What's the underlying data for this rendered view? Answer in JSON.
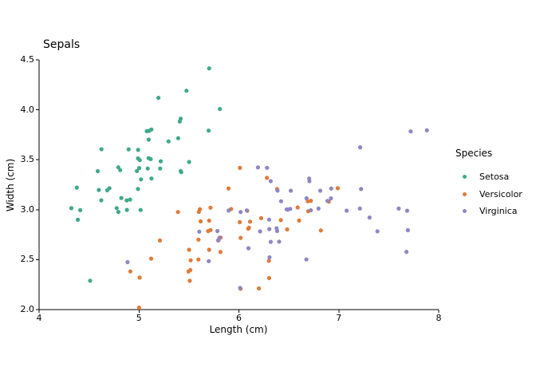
{
  "chart_data": {
    "type": "scatter",
    "title": "Sepals",
    "xlabel": "Length (cm)",
    "ylabel": "Width (cm)",
    "xlim": [
      4,
      8
    ],
    "ylim": [
      2.0,
      4.5
    ],
    "x_ticks": [
      4,
      5,
      6,
      7,
      8
    ],
    "x_tick_labels": [
      "4",
      "5",
      "6",
      "7",
      "8"
    ],
    "y_ticks": [
      2.0,
      2.5,
      3.0,
      3.5,
      4.0,
      4.5
    ],
    "y_tick_labels": [
      "2.0",
      "2.5",
      "3.0",
      "3.5",
      "4.0",
      "4.5"
    ],
    "grid": false,
    "legend_title": "Species",
    "legend_position": "right",
    "marker": "circle",
    "axis_color": "#000000",
    "series": [
      {
        "name": "Setosa",
        "color": "#3fa98b",
        "x": [
          5.1,
          4.9,
          4.7,
          4.6,
          5.0,
          5.4,
          4.6,
          5.0,
          4.4,
          4.9,
          5.4,
          4.8,
          4.8,
          4.3,
          5.8,
          5.7,
          5.4,
          5.1,
          5.7,
          5.1,
          5.4,
          5.1,
          4.6,
          5.1,
          4.8,
          5.0,
          5.0,
          5.2,
          5.2,
          4.7,
          4.8,
          5.4,
          5.2,
          5.5,
          4.9,
          5.0,
          5.5,
          4.9,
          4.4,
          5.1,
          5.0,
          4.5,
          4.4,
          5.0,
          5.1,
          4.8,
          5.1,
          4.6,
          5.3,
          5.0
        ],
        "y": [
          3.5,
          3.0,
          3.2,
          3.1,
          3.6,
          3.9,
          3.4,
          3.4,
          2.9,
          3.1,
          3.7,
          3.4,
          3.0,
          3.0,
          4.0,
          4.4,
          3.9,
          3.5,
          3.8,
          3.8,
          3.4,
          3.7,
          3.6,
          3.3,
          3.4,
          3.0,
          3.4,
          3.5,
          3.4,
          3.2,
          3.1,
          3.4,
          4.1,
          4.2,
          3.1,
          3.2,
          3.5,
          3.6,
          3.0,
          3.4,
          3.5,
          2.3,
          3.2,
          3.5,
          3.8,
          3.0,
          3.8,
          3.2,
          3.7,
          3.3
        ]
      },
      {
        "name": "Versicolor",
        "color": "#df7b38",
        "x": [
          7.0,
          6.4,
          6.9,
          5.5,
          6.5,
          5.7,
          6.3,
          4.9,
          6.6,
          5.2,
          5.0,
          5.9,
          6.0,
          6.1,
          5.6,
          6.7,
          5.6,
          5.8,
          6.2,
          5.6,
          5.9,
          6.1,
          6.3,
          6.1,
          6.4,
          6.6,
          6.8,
          6.7,
          6.0,
          5.7,
          5.5,
          5.5,
          5.8,
          6.0,
          5.4,
          6.0,
          6.7,
          6.3,
          5.6,
          5.5,
          5.5,
          6.1,
          5.8,
          5.0,
          5.6,
          5.7,
          5.7,
          6.2,
          5.1,
          5.7
        ],
        "y": [
          3.2,
          3.2,
          3.1,
          2.3,
          2.8,
          2.8,
          3.3,
          2.4,
          2.9,
          2.7,
          2.0,
          3.0,
          2.2,
          2.9,
          2.9,
          3.1,
          3.0,
          2.7,
          2.2,
          2.5,
          3.2,
          2.8,
          2.5,
          2.8,
          2.9,
          3.0,
          2.8,
          3.0,
          2.9,
          2.6,
          2.4,
          2.4,
          2.7,
          2.7,
          3.0,
          3.4,
          3.1,
          2.3,
          3.0,
          2.5,
          2.6,
          3.0,
          2.6,
          2.3,
          2.7,
          3.0,
          2.9,
          2.9,
          2.5,
          2.8
        ]
      },
      {
        "name": "Virginica",
        "color": "#8d87c4",
        "x": [
          6.3,
          5.8,
          7.1,
          6.3,
          6.5,
          7.6,
          4.9,
          7.3,
          6.7,
          7.2,
          6.5,
          6.4,
          6.8,
          5.7,
          5.8,
          6.4,
          6.5,
          7.7,
          7.7,
          6.0,
          6.9,
          5.6,
          7.7,
          6.3,
          6.7,
          7.2,
          6.2,
          6.1,
          6.4,
          7.2,
          7.4,
          7.9,
          6.4,
          6.3,
          6.1,
          7.7,
          6.3,
          6.4,
          6.0,
          6.9,
          6.7,
          6.9,
          5.8,
          6.8,
          6.7,
          6.7,
          6.3,
          6.5,
          6.2,
          5.9
        ],
        "y": [
          3.3,
          2.7,
          3.0,
          2.9,
          3.0,
          3.0,
          2.5,
          2.9,
          2.5,
          3.6,
          3.2,
          2.7,
          3.0,
          2.5,
          2.8,
          3.2,
          3.0,
          3.8,
          2.6,
          2.2,
          3.2,
          2.8,
          2.8,
          2.7,
          3.3,
          3.2,
          2.8,
          3.0,
          2.8,
          3.0,
          2.8,
          3.8,
          2.8,
          2.8,
          2.6,
          3.0,
          3.4,
          3.1,
          3.0,
          3.1,
          3.1,
          3.1,
          2.7,
          3.2,
          3.3,
          3.0,
          2.5,
          3.0,
          3.4,
          3.0
        ]
      }
    ]
  }
}
